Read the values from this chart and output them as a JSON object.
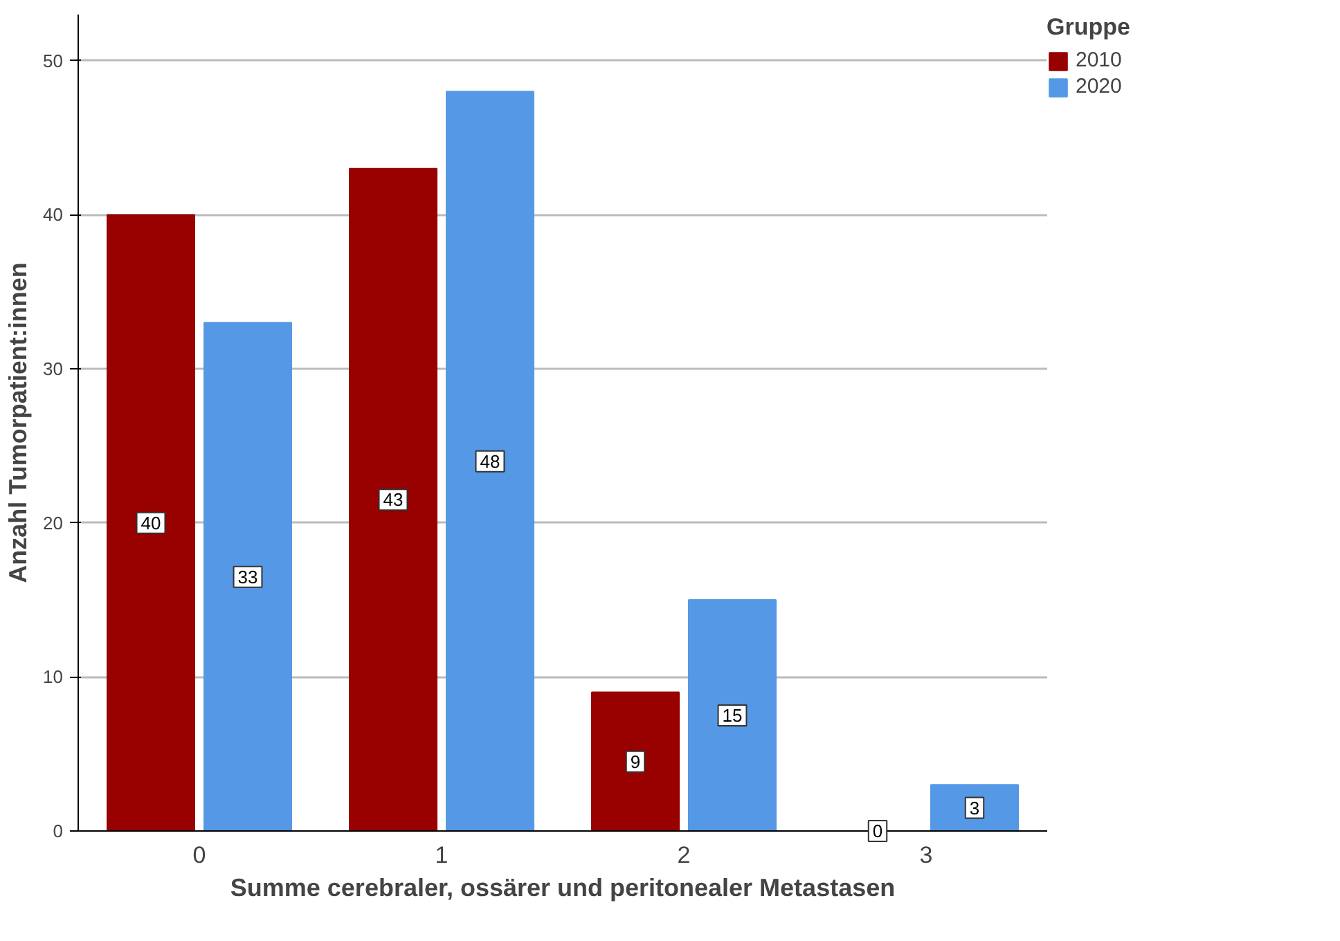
{
  "chart_data": {
    "type": "bar",
    "xlabel": "Summe cerebraler, ossärer und peritonealer Metastasen",
    "ylabel": "Anzahl Tumorpatient:innen",
    "legend_title": "Gruppe",
    "categories": [
      "0",
      "1",
      "2",
      "3"
    ],
    "series": [
      {
        "name": "2010",
        "color": "#990000",
        "values": [
          40,
          43,
          9,
          0
        ]
      },
      {
        "name": "2020",
        "color": "#5599e6",
        "values": [
          33,
          48,
          15,
          3
        ]
      }
    ],
    "ylim": [
      0,
      53
    ],
    "yticks": [
      0,
      10,
      20,
      30,
      40,
      50
    ],
    "grid": "y",
    "legend": "top right",
    "data_labels": true
  }
}
